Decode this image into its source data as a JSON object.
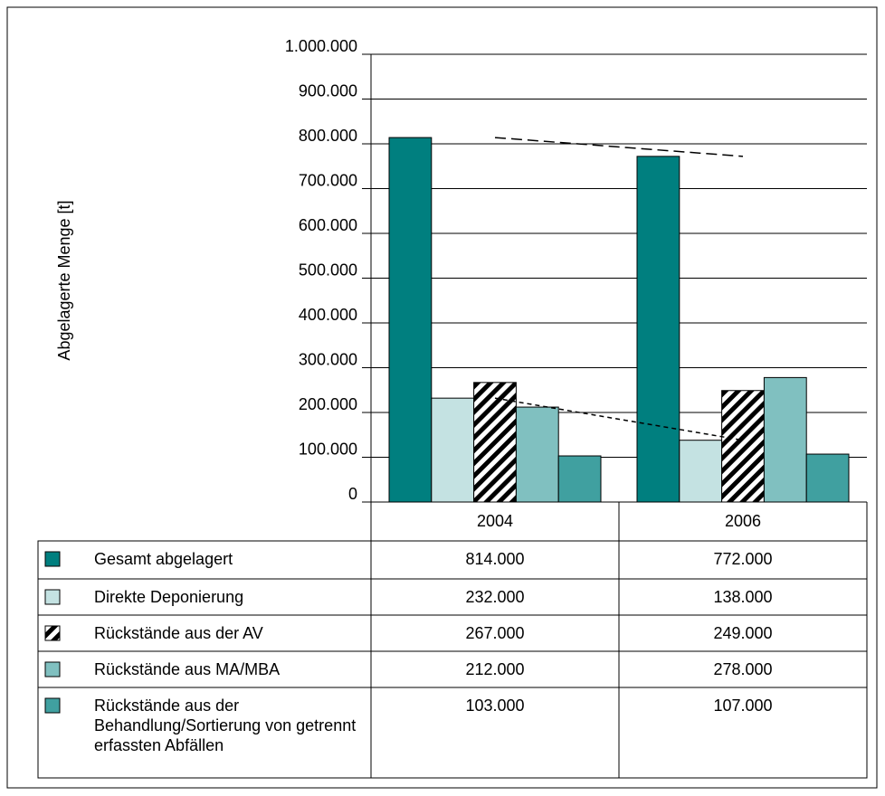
{
  "chart_data": {
    "type": "bar",
    "y_label": "Abgelagerte Menge [t]",
    "categories": [
      "2004",
      "2006"
    ],
    "series": [
      {
        "name": "Gesamt abgelagert",
        "color": "#007f7f",
        "values": [
          814000,
          772000
        ],
        "value_labels": [
          "814.000",
          "772.000"
        ],
        "trendline": true
      },
      {
        "name": "Direkte Deponierung",
        "color": "#c4e2e2",
        "values": [
          232000,
          138000
        ],
        "value_labels": [
          "232.000",
          "138.000"
        ],
        "trendline": true
      },
      {
        "name": "Rückstände aus der AV",
        "color": "#000000",
        "pattern": "hatch",
        "values": [
          267000,
          249000
        ],
        "value_labels": [
          "267.000",
          "249.000"
        ]
      },
      {
        "name": "Rückstände aus MA/MBA",
        "color": "#80c0c0",
        "values": [
          212000,
          278000
        ],
        "value_labels": [
          "212.000",
          "278.000"
        ]
      },
      {
        "name": "Rückstände aus der Behandlung/Sortierung von getrennt erfassten Abfällen",
        "color": "#40a0a0",
        "values": [
          103000,
          107000
        ],
        "value_labels": [
          "103.000",
          "107.000"
        ]
      }
    ],
    "ylim": [
      0,
      1000000
    ],
    "yticks": [
      0,
      {
        "value": 100000,
        "label": "100.000"
      },
      {
        "value": 200000,
        "label": "200.000"
      },
      {
        "value": 300000,
        "label": "300.000"
      },
      {
        "value": 400000,
        "label": "400.000"
      },
      {
        "value": 500000,
        "label": "500.000"
      },
      {
        "value": 600000,
        "label": "600.000"
      },
      {
        "value": 700000,
        "label": "700.000"
      },
      {
        "value": 800000,
        "label": "800.000"
      },
      {
        "value": 900000,
        "label": "900.000"
      },
      {
        "value": 1000000,
        "label": "1.000.000"
      }
    ],
    "grid": true
  }
}
